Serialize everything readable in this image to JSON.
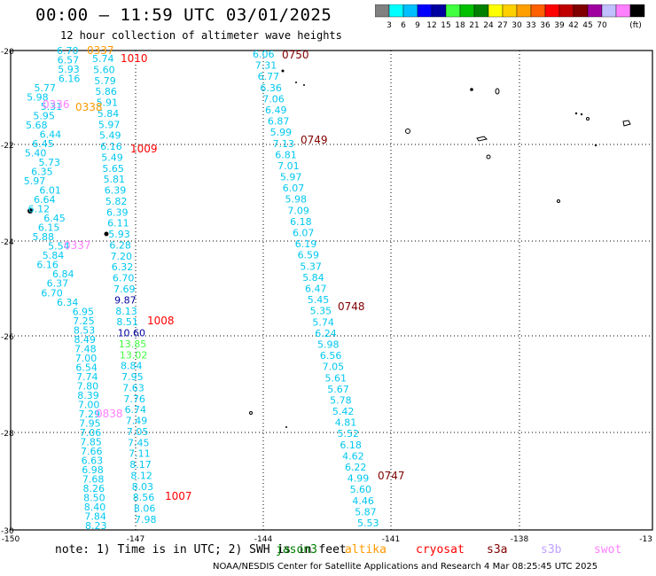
{
  "header": {
    "title": "00:00 – 11:59 UTC 03/01/2025",
    "subtitle": "12 hour collection of altimeter wave heights"
  },
  "colorbar": {
    "unit": "(ft)",
    "colors": [
      "#808080",
      "#00ffff",
      "#00bfff",
      "#0000ff",
      "#0000a0",
      "#40ff40",
      "#00c000",
      "#008000",
      "#ffff00",
      "#ffd000",
      "#ffa000",
      "#ff6000",
      "#ff0000",
      "#c00000",
      "#800000",
      "#a000a0",
      "#c0c0ff",
      "#ff80ff",
      "#000000"
    ],
    "labels": [
      "3",
      "6",
      "9",
      "12",
      "15",
      "18",
      "21",
      "24",
      "27",
      "30",
      "33",
      "36",
      "39",
      "42",
      "45",
      "70"
    ]
  },
  "axes": {
    "lat_ticks": [
      "-20",
      "-22",
      "-24",
      "-26",
      "-28",
      "-30"
    ],
    "lon_ticks": [
      "-150",
      "-147",
      "-144",
      "-141",
      "-138",
      "-13"
    ]
  },
  "footer": {
    "note": "note: 1) Time is in UTC; 2) SWH is in feet",
    "credit": "NOAA/NESDIS Center for Satellite Applications and Research   4 Mar 08:25:45 UTC 2025",
    "satellites": [
      {
        "name": "jason3",
        "color": "#008000"
      },
      {
        "name": "altika",
        "color": "#ff9900"
      },
      {
        "name": "cryosat",
        "color": "#ff0000"
      },
      {
        "name": "s3a",
        "color": "#800000"
      },
      {
        "name": "s3b",
        "color": "#c0a0ff"
      },
      {
        "name": "swot",
        "color": "#ff80ff"
      }
    ]
  },
  "tracks": {
    "A": {
      "values": [
        "6.70",
        "6.57",
        "5.93",
        "6.16",
        "5.77",
        "5.98",
        "5.31",
        "5.95",
        "5.68",
        "6.44",
        "6.45",
        "5.40",
        "5.73",
        "6.35",
        "5.97",
        "6.01",
        "6.64",
        "6.12",
        "6.45",
        "6.15",
        "5.88",
        "5.54",
        "5.84",
        "6.16",
        "6.84",
        "6.37",
        "6.70",
        "6.34",
        "6.95",
        "7.25",
        "8.53",
        "8.49",
        "7.48",
        "7.00",
        "6.54",
        "7.74",
        "7.80",
        "8.39",
        "7.00",
        "7.29",
        "7.95",
        "7.06",
        "7.85",
        "7.66",
        "6.63",
        "6.98",
        "7.68",
        "8.26",
        "8.50",
        "8.40",
        "7.84",
        "8.23"
      ],
      "times": [
        {
          "text": "0337",
          "color": "#ff9900"
        },
        {
          "text": "0336",
          "color": "#ff80ff"
        },
        {
          "text": "0337",
          "color": "#ff80ff"
        },
        {
          "text": "0838",
          "color": "#ff80ff"
        }
      ]
    },
    "B": {
      "values": [
        "5.74",
        "5.60",
        "5.79",
        "5.86",
        "5.91",
        "5.84",
        "5.97",
        "5.49",
        "6.16",
        "5.49",
        "5.65",
        "5.81",
        "6.39",
        "5.82",
        "6.39",
        "6.11",
        "5.93",
        "6.28",
        "7.20",
        "6.32",
        "6.70",
        "7.69",
        "9.87",
        "8.13",
        "8.51",
        "10.60",
        "13.85",
        "13.02",
        "8.84",
        "7.95",
        "7.63",
        "7.76",
        "6.74",
        "7.49",
        "7.05",
        "7.45",
        "7.11",
        "8.17",
        "8.12",
        "8.03",
        "8.56",
        "8.06",
        "7.98"
      ],
      "value_colors": {
        "9.87": "#0000a0",
        "10.60": "#0000a0",
        "13.85": "#40ff40",
        "13.02": "#40ff40"
      },
      "times": [
        {
          "text": "1010",
          "color": "#ff0000"
        },
        {
          "text": "0338",
          "color": "#ff9900"
        },
        {
          "text": "1009",
          "color": "#ff0000"
        },
        {
          "text": "1008",
          "color": "#ff0000"
        },
        {
          "text": "1007",
          "color": "#ff0000"
        }
      ]
    },
    "C": {
      "values": [
        "6.06",
        "7.31",
        "6.77",
        "6.36",
        "7.06",
        "6.49",
        "6.87",
        "5.99",
        "7.13",
        "6.81",
        "7.01",
        "5.97",
        "6.07",
        "5.98",
        "7.09",
        "6.18",
        "6.07",
        "6.19",
        "6.59",
        "5.37",
        "5.84",
        "6.47",
        "5.45",
        "5.35",
        "5.74",
        "6.24",
        "5.98",
        "6.56",
        "7.05",
        "5.61",
        "5.67",
        "5.78",
        "5.42",
        "4.81",
        "5.52",
        "6.18",
        "4.62",
        "6.22",
        "4.99",
        "5.60",
        "4.46",
        "5.87",
        "5.53"
      ],
      "times": [
        {
          "text": "0750",
          "color": "#800000"
        },
        {
          "text": "0749",
          "color": "#800000"
        },
        {
          "text": "0748",
          "color": "#800000"
        },
        {
          "text": "0747",
          "color": "#800000"
        }
      ]
    }
  }
}
